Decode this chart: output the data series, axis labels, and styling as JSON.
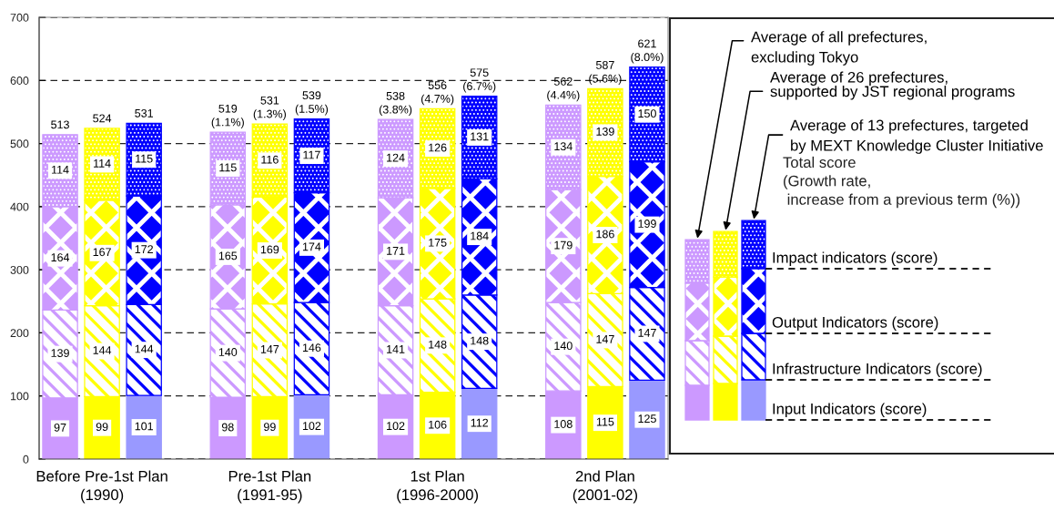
{
  "chart_data": {
    "type": "bar",
    "stacked": true,
    "categories": [
      null,
      "Before Pre-1st Plan\n(1990)",
      null,
      null,
      null,
      "Pre-1st Plan\n(1991-95)",
      null,
      null,
      null,
      "1st Plan\n(1996-2000)",
      null,
      null,
      null,
      "2nd Plan\n(2001-02)",
      null
    ],
    "series": [
      {
        "name": "Input Indicators (score)",
        "colors": [
          "#cc99ff",
          "#ffff00",
          "#9999ff",
          null,
          "#cc99ff",
          "#ffff00",
          "#9999ff",
          null,
          "#cc99ff",
          "#ffff00",
          "#9999ff",
          null,
          "#cc99ff",
          "#ffff00",
          "#9999ff"
        ],
        "values": [
          97,
          99,
          101,
          null,
          98,
          99,
          102,
          null,
          102,
          106,
          112,
          null,
          108,
          115,
          125
        ]
      },
      {
        "name": "Infrastructure Indicators (score)",
        "colors": [
          "#cc99ff",
          "#ffff00",
          "#0000ff",
          null,
          "#cc99ff",
          "#ffff00",
          "#0000ff",
          null,
          "#cc99ff",
          "#ffff00",
          "#0000ff",
          null,
          "#cc99ff",
          "#ffff00",
          "#0000ff"
        ],
        "values": [
          139,
          144,
          144,
          null,
          140,
          147,
          146,
          null,
          141,
          148,
          148,
          null,
          140,
          147,
          147
        ]
      },
      {
        "name": "Output Indicators (score)",
        "colors": [
          "#cc99ff",
          "#ffff00",
          "#0000ff",
          null,
          "#cc99ff",
          "#ffff00",
          "#0000ff",
          null,
          "#cc99ff",
          "#ffff00",
          "#0000ff",
          null,
          "#cc99ff",
          "#ffff00",
          "#0000ff"
        ],
        "values": [
          164,
          167,
          172,
          null,
          165,
          169,
          174,
          null,
          171,
          175,
          184,
          null,
          179,
          186,
          199
        ]
      },
      {
        "name": "Impact indicators (score)",
        "colors": [
          "#cc99ff",
          "#ffff00",
          "#0000ff",
          null,
          "#cc99ff",
          "#ffff00",
          "#0000ff",
          null,
          "#cc99ff",
          "#ffff00",
          "#0000ff",
          null,
          "#cc99ff",
          "#ffff00",
          "#0000ff"
        ],
        "values": [
          114,
          114,
          115,
          null,
          115,
          116,
          117,
          null,
          124,
          126,
          131,
          null,
          134,
          139,
          150
        ]
      }
    ],
    "totals": [
      "513",
      "524",
      "531",
      null,
      "519\n(1.1%)",
      "531\n(1.3%)",
      "539\n(1.5%)",
      null,
      "538\n(3.8%)",
      "556\n(4.7%)",
      "575\n(6.7%)",
      null,
      "562\n(4.4%)",
      "587\n(5.6%)",
      "621\n(8.0%)"
    ],
    "data_labels": true,
    "ylim": [
      0,
      700
    ],
    "yticks": [
      0,
      100,
      200,
      300,
      400,
      500,
      600,
      700
    ],
    "grid": "y",
    "legend": "right",
    "annotations": [
      "Average of all prefectures,\nexcluding Tokyo",
      "Average of 26 prefectures,\nsupported by JST regional programs",
      "Average of 13 prefectures, targeted\nby MEXT Knowledge Cluster Initiative",
      "Total score\n(Growth rate,\n increase from a previous term (%))"
    ]
  }
}
